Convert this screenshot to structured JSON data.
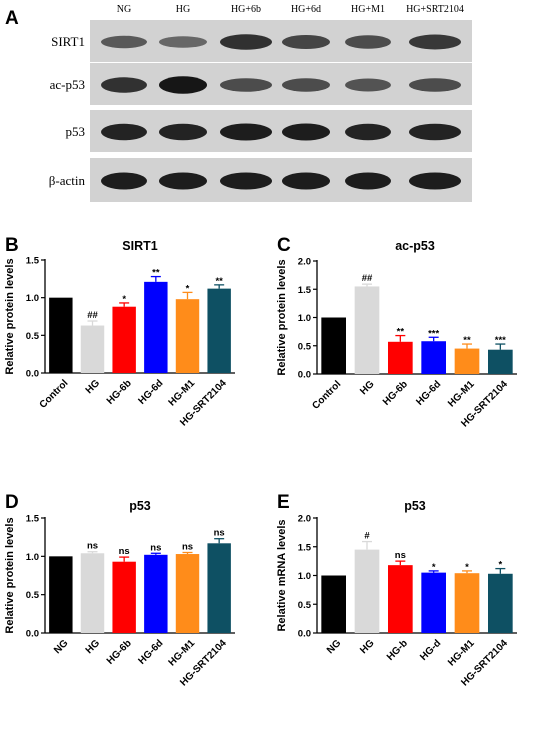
{
  "panel_a": {
    "letter": "A",
    "lanes": [
      "NG",
      "HG",
      "HG+6b",
      "HG+6d",
      "HG+M1",
      "HG+SRT2104"
    ],
    "blots": [
      {
        "label": "SIRT1",
        "intensity": [
          0.45,
          0.35,
          0.75,
          0.6,
          0.55,
          0.7
        ]
      },
      {
        "label": "ac-p53",
        "intensity": [
          0.75,
          0.95,
          0.55,
          0.55,
          0.5,
          0.55
        ]
      },
      {
        "label": "p53",
        "intensity": [
          0.85,
          0.85,
          0.9,
          0.9,
          0.85,
          0.85
        ]
      },
      {
        "label": "β-actin",
        "intensity": [
          0.9,
          0.9,
          0.9,
          0.9,
          0.9,
          0.9
        ]
      }
    ]
  },
  "chart_data": [
    {
      "letter": "B",
      "type": "bar",
      "title": "SIRT1",
      "ylabel": "Relative protein levels",
      "ylim": [
        0,
        1.5
      ],
      "yticks": [
        "0.0",
        "0.5",
        "1.0",
        "1.5"
      ],
      "categories": [
        "Control",
        "HG",
        "HG-6b",
        "HG-6d",
        "HG-M1",
        "HG-SRT2104"
      ],
      "values": [
        1.0,
        0.63,
        0.88,
        1.21,
        0.98,
        1.12
      ],
      "errors": [
        0,
        0.06,
        0.05,
        0.07,
        0.09,
        0.05
      ],
      "significance": [
        "",
        "##",
        "*",
        "**",
        "*",
        "**"
      ],
      "colors": [
        "#000000",
        "#d9d9d9",
        "#ff0000",
        "#0000ff",
        "#ff8c1a",
        "#0e5063"
      ]
    },
    {
      "letter": "C",
      "type": "bar",
      "title": "ac-p53",
      "ylabel": "Relative protein levels",
      "ylim": [
        0,
        2.0
      ],
      "yticks": [
        "0.0",
        "0.5",
        "1.0",
        "1.5",
        "2.0"
      ],
      "categories": [
        "Control",
        "HG",
        "HG-6b",
        "HG-6d",
        "HG-M1",
        "HG-SRT2104"
      ],
      "values": [
        1.0,
        1.55,
        0.57,
        0.58,
        0.45,
        0.43
      ],
      "errors": [
        0,
        0.04,
        0.11,
        0.07,
        0.08,
        0.1
      ],
      "significance": [
        "",
        "##",
        "**",
        "***",
        "**",
        "***"
      ],
      "colors": [
        "#000000",
        "#d9d9d9",
        "#ff0000",
        "#0000ff",
        "#ff8c1a",
        "#0e5063"
      ]
    },
    {
      "letter": "D",
      "type": "bar",
      "title": "p53",
      "ylabel": "Relative protein levels",
      "ylim": [
        0,
        1.5
      ],
      "yticks": [
        "0.0",
        "0.5",
        "1.0",
        "1.5"
      ],
      "categories": [
        "NG",
        "HG",
        "HG-6b",
        "HG-6d",
        "HG-M1",
        "HG-SRT2104"
      ],
      "values": [
        1.0,
        1.04,
        0.93,
        1.02,
        1.03,
        1.17
      ],
      "errors": [
        0,
        0.02,
        0.06,
        0.02,
        0.02,
        0.06
      ],
      "significance": [
        "",
        "ns",
        "ns",
        "ns",
        "ns",
        "ns"
      ],
      "colors": [
        "#000000",
        "#d9d9d9",
        "#ff0000",
        "#0000ff",
        "#ff8c1a",
        "#0e5063"
      ]
    },
    {
      "letter": "E",
      "type": "bar",
      "title": "p53",
      "ylabel": "Relative mRNA levels",
      "ylim": [
        0,
        2.0
      ],
      "yticks": [
        "0.0",
        "0.5",
        "1.0",
        "1.5",
        "2.0"
      ],
      "categories": [
        "NG",
        "HG",
        "HG-b",
        "HG-d",
        "HG-M1",
        "HG-SRT2104"
      ],
      "values": [
        1.0,
        1.45,
        1.18,
        1.05,
        1.04,
        1.03
      ],
      "errors": [
        0,
        0.14,
        0.07,
        0.03,
        0.04,
        0.09
      ],
      "significance": [
        "",
        "#",
        "ns",
        "*",
        "*",
        "*"
      ],
      "colors": [
        "#000000",
        "#d9d9d9",
        "#ff0000",
        "#0000ff",
        "#ff8c1a",
        "#0e5063"
      ]
    }
  ]
}
